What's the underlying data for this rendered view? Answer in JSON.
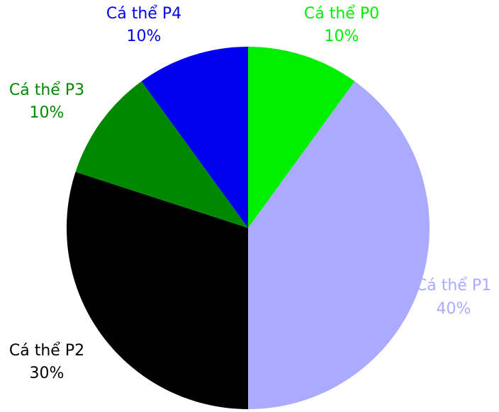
{
  "chart_data": {
    "type": "pie",
    "slices": [
      {
        "label": "Cá thể P0",
        "value": 10,
        "value_label": "10%",
        "color": "#00ee00"
      },
      {
        "label": "Cá thể P1",
        "value": 40,
        "value_label": "40%",
        "color": "#aaaaff"
      },
      {
        "label": "Cá thể P2",
        "value": 30,
        "value_label": "30%",
        "color": "#000000"
      },
      {
        "label": "Cá thể P3",
        "value": 10,
        "value_label": "10%",
        "color": "#008800"
      },
      {
        "label": "Cá thể P4",
        "value": 10,
        "value_label": "10%",
        "color": "#0000ee"
      }
    ],
    "start_angle": "12 o'clock",
    "direction": "clockwise",
    "legend": "none"
  }
}
